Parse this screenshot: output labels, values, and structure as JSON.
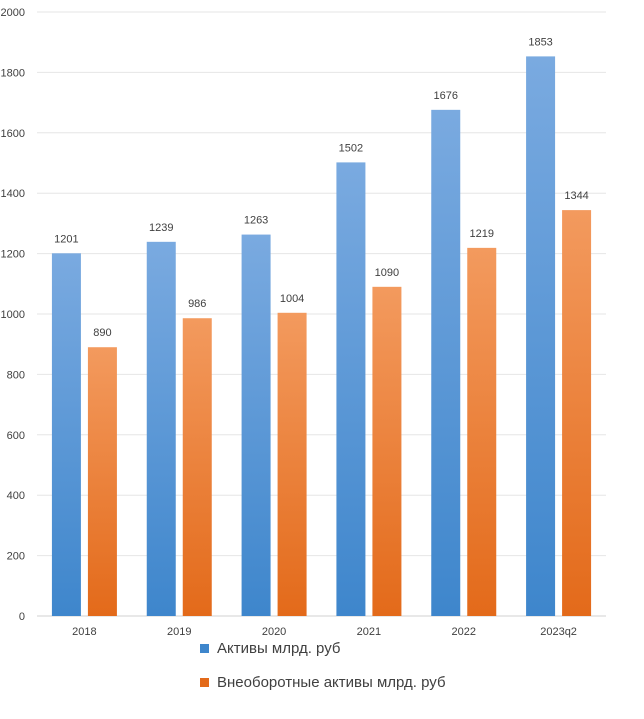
{
  "chart_data": {
    "type": "bar",
    "categories": [
      "2018",
      "2019",
      "2020",
      "2021",
      "2022",
      "2023q2"
    ],
    "series": [
      {
        "name": "Активы млрд. руб",
        "values": [
          1201,
          1239,
          1263,
          1502,
          1676,
          1853
        ],
        "color_top": "#7aaae0",
        "color_bottom": "#3e86cc"
      },
      {
        "name": "Внеоборотные активы млрд. руб",
        "values": [
          890,
          986,
          1004,
          1090,
          1219,
          1344
        ],
        "color_top": "#f39a5e",
        "color_bottom": "#e36a1a"
      }
    ],
    "ylim": [
      0,
      2000
    ],
    "yticks": [
      0,
      200,
      400,
      600,
      800,
      1000,
      1200,
      1400,
      1600,
      1800,
      2000
    ],
    "grid": true,
    "legend_position": "bottom"
  }
}
